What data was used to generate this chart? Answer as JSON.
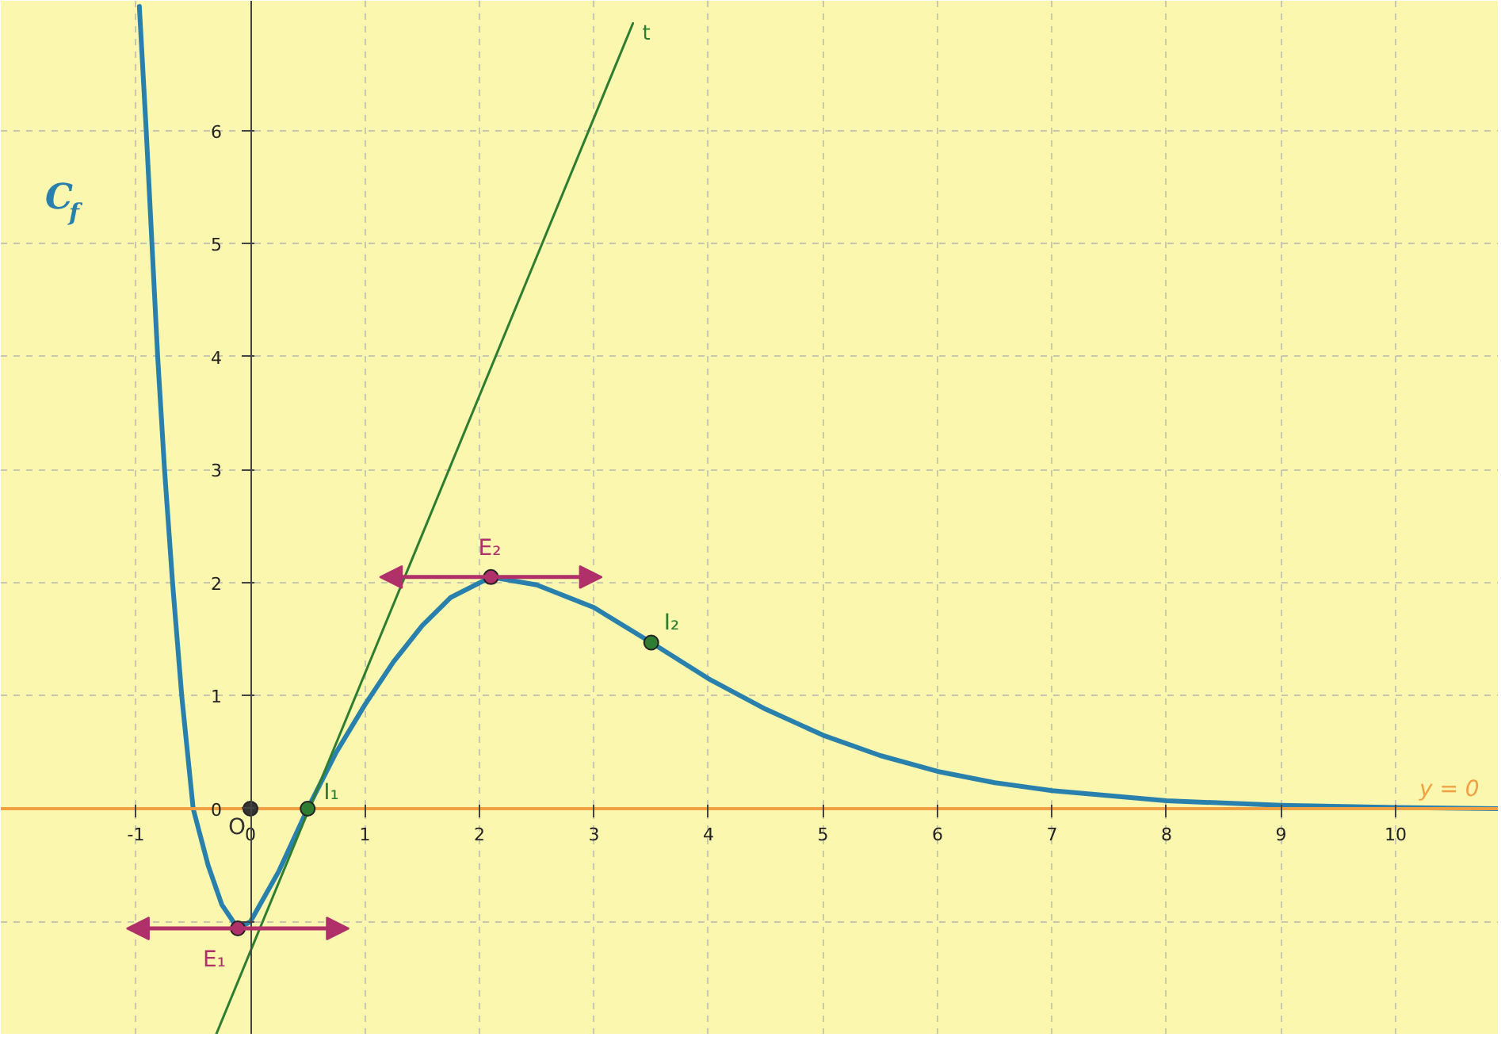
{
  "chart_data": {
    "type": "line",
    "xlim": [
      -2.18,
      10.9
    ],
    "ylim": [
      -2.0,
      7.15
    ],
    "xticks": [
      -1,
      {
        "value": 0,
        "label": "0"
      },
      1,
      2,
      3,
      4,
      5,
      6,
      7,
      8,
      9,
      10
    ],
    "yticks": [
      {
        "value": -1,
        "label": null
      },
      0,
      1,
      2,
      3,
      4,
      5,
      6
    ],
    "grid": true,
    "series": [
      {
        "name": "C$_{f}$",
        "color": "#2a80ad",
        "x": [
          -0.97,
          -0.91,
          -0.86,
          -0.81,
          -0.75,
          -0.68,
          -0.6,
          -0.5,
          -0.37,
          -0.25,
          -0.11,
          0,
          0.25,
          0.5,
          0.75,
          1,
          1.25,
          1.5,
          1.75,
          2.1,
          2.5,
          3,
          3.5,
          4,
          4.5,
          5,
          5.5,
          6,
          6.5,
          7,
          8,
          9,
          10,
          10.9
        ],
        "values": [
          7.1,
          6,
          5,
          4,
          3,
          2,
          1,
          0,
          -0.5,
          -0.85,
          -1.06,
          -1.0,
          -0.55,
          0,
          0.5,
          0.92,
          1.3,
          1.62,
          1.87,
          2.05,
          1.98,
          1.78,
          1.47,
          1.15,
          0.88,
          0.65,
          0.47,
          0.33,
          0.23,
          0.16,
          0.07,
          0.03,
          0.01,
          0
        ]
      },
      {
        "name": "t",
        "color": "#2e7d32",
        "x": [
          -0.3,
          3.34
        ],
        "values": [
          -2.0,
          6.95
        ]
      },
      {
        "name": "y = 0",
        "color": "#f0a040",
        "x": [
          -2.18,
          10.9
        ],
        "values": [
          0,
          0
        ]
      },
      {
        "type": "scatter",
        "name": "E₁",
        "color": "#b0306a",
        "x": [
          -0.11
        ],
        "values": [
          -1.06
        ]
      },
      {
        "type": "scatter",
        "name": "E₂",
        "color": "#b0306a",
        "x": [
          2.1
        ],
        "values": [
          2.05
        ]
      },
      {
        "type": "scatter",
        "name": "I₁",
        "color": "#2e7d32",
        "x": [
          0.5
        ],
        "values": [
          0
        ]
      },
      {
        "type": "scatter",
        "name": "I₂",
        "color": "#2e7d32",
        "x": [
          3.5
        ],
        "values": [
          1.47
        ]
      },
      {
        "type": "scatter",
        "name": "O",
        "color": "#333333",
        "x": [
          0
        ],
        "values": [
          0
        ]
      }
    ]
  }
}
